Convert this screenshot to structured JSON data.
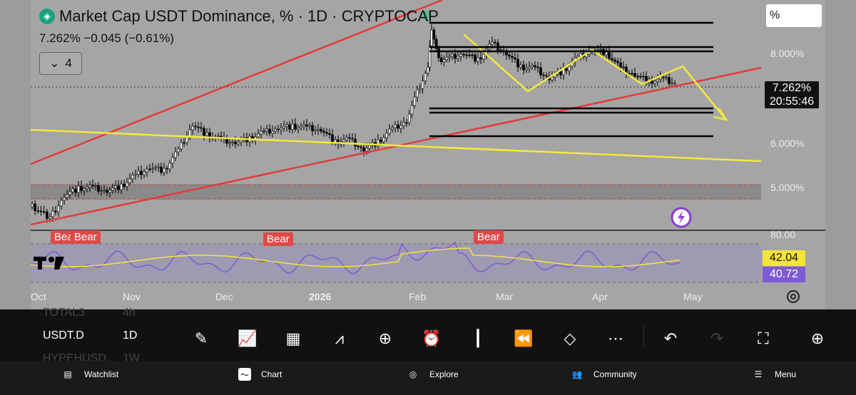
{
  "header": {
    "title": "Market Cap USDT Dominance, % · 1D · CRYPTOCAP",
    "ohlc": "7.262%  −0.045 (−0.61%)",
    "indicator_count": "4",
    "unit": "%"
  },
  "price_axis": {
    "labels": [
      "8.000%",
      "6.000%",
      "5.000%"
    ],
    "current_price": "7.262%",
    "countdown": "20:55:46",
    "rsi_top": "80.00"
  },
  "annotations": {
    "bear_labels": [
      "Bear",
      "Bear",
      "Bear",
      "Bear"
    ]
  },
  "rsi": {
    "value_ma": "42.04",
    "value_rsi": "40.72",
    "ma_color": "#f5e43a",
    "rsi_color": "#7d5bd6"
  },
  "time_axis": {
    "labels": [
      "Oct",
      "Nov",
      "Dec",
      "2026",
      "Feb",
      "Mar",
      "Apr",
      "May"
    ]
  },
  "symbols": [
    {
      "symbol": "TOTAL3",
      "tf": "4h"
    },
    {
      "symbol": "USDT.D",
      "tf": "1D"
    },
    {
      "symbol": "HYPEHUSD",
      "tf": "1W"
    }
  ],
  "toolbar": {
    "icons": [
      "pencil-icon",
      "indicators-icon",
      "grid-icon",
      "compare-icon",
      "plus-icon",
      "alarm-icon",
      "candles-icon",
      "replay-icon",
      "layers-icon",
      "more-icon",
      "undo-icon",
      "redo-icon",
      "fullscreen-icon",
      "crosshair-icon"
    ]
  },
  "nav": {
    "watchlist": "Watchlist",
    "chart": "Chart",
    "explore": "Explore",
    "community": "Community",
    "menu": "Menu"
  },
  "colors": {
    "red_trend": "#e23b3b",
    "yellow_trend": "#f3ea3a",
    "candles": "#000000"
  }
}
